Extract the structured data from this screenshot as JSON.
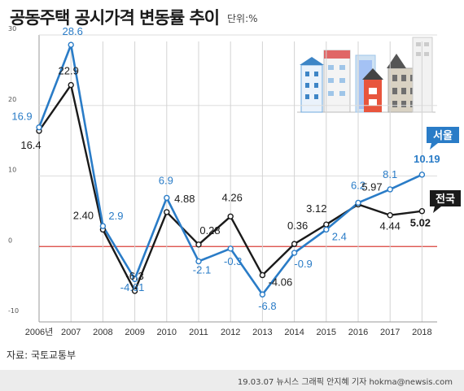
{
  "header": {
    "title": "공동주택 공시가격 변동률 추이",
    "unit": "단위:%"
  },
  "source": "자료: 국토교통부",
  "footer": "19.03.07    뉴시스 그래픽 안지혜 기자 hokma@newsis.com",
  "colors": {
    "seoul": "#2a7cc7",
    "national": "#1a1a1a",
    "zero_line": "#d9403a",
    "grid": "#dddddd"
  },
  "chart_data": {
    "type": "line",
    "title": "공동주택 공시가격 변동률 추이",
    "xlabel": "",
    "ylabel": "",
    "categories": [
      "2006년",
      "2007",
      "2008",
      "2009",
      "2010",
      "2011",
      "2012",
      "2013",
      "2014",
      "2015",
      "2016",
      "2017",
      "2018"
    ],
    "yticks": [
      "30",
      "20",
      "10",
      "0",
      "-10"
    ],
    "ylim": [
      -10,
      30
    ],
    "grid": true,
    "series": [
      {
        "name": "서울",
        "values": [
          16.9,
          28.6,
          2.9,
          -4.61,
          6.9,
          -2.1,
          -0.3,
          -6.8,
          -0.9,
          2.4,
          6.2,
          8.1,
          10.19
        ],
        "labels": [
          "16.9",
          "28.6",
          "2.9",
          "-4.61",
          "6.9",
          "-2.1",
          "-0.3",
          "-6.8",
          "-0.9",
          "2.4",
          "6.2",
          "8.1",
          "10.19"
        ]
      },
      {
        "name": "전국",
        "values": [
          16.4,
          22.9,
          2.4,
          -6.3,
          4.88,
          0.28,
          4.26,
          -4.06,
          0.36,
          3.12,
          5.97,
          4.44,
          5.02
        ],
        "labels": [
          "16.4",
          "22.9",
          "2.40",
          "-6.3",
          "4.88",
          "0.28",
          "4.26",
          "-4.06",
          "0.36",
          "3.12",
          "5.97",
          "4.44",
          "5.02"
        ]
      }
    ]
  }
}
